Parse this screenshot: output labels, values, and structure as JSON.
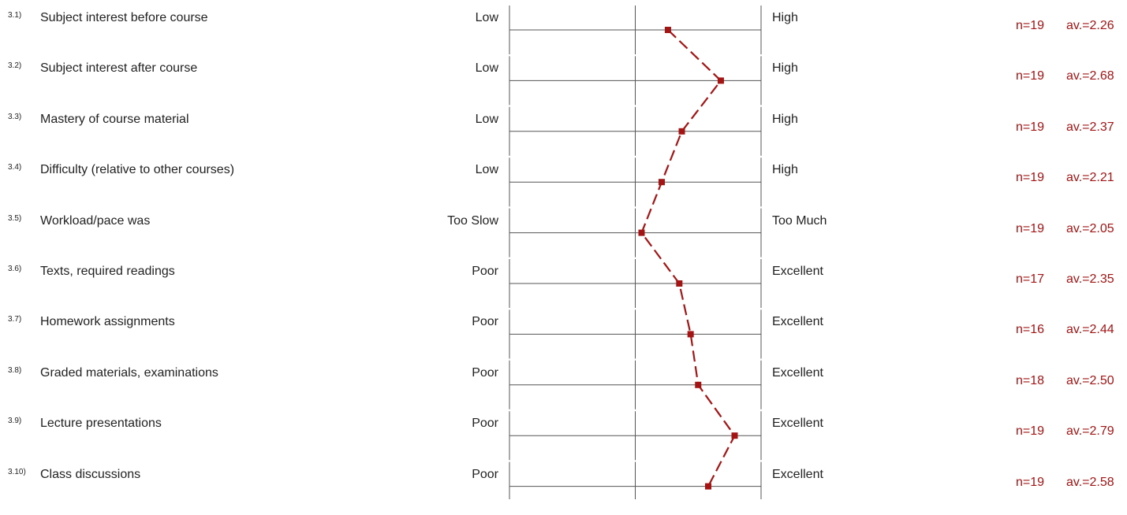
{
  "chart_data": {
    "type": "line",
    "scale_min": 1,
    "scale_max": 3,
    "color": "#a31515",
    "rows": [
      {
        "num": "3.1)",
        "label": "Subject interest before course",
        "low": "Low",
        "high": "High",
        "n": "n=19",
        "av": "av.=2.26",
        "value": 2.26
      },
      {
        "num": "3.2)",
        "label": "Subject interest after course",
        "low": "Low",
        "high": "High",
        "n": "n=19",
        "av": "av.=2.68",
        "value": 2.68
      },
      {
        "num": "3.3)",
        "label": "Mastery of course material",
        "low": "Low",
        "high": "High",
        "n": "n=19",
        "av": "av.=2.37",
        "value": 2.37
      },
      {
        "num": "3.4)",
        "label": "Difficulty (relative to other courses)",
        "low": "Low",
        "high": "High",
        "n": "n=19",
        "av": "av.=2.21",
        "value": 2.21
      },
      {
        "num": "3.5)",
        "label": "Workload/pace was",
        "low": "Too Slow",
        "high": "Too Much",
        "n": "n=19",
        "av": "av.=2.05",
        "value": 2.05
      },
      {
        "num": "3.6)",
        "label": "Texts, required readings",
        "low": "Poor",
        "high": "Excellent",
        "n": "n=17",
        "av": "av.=2.35",
        "value": 2.35
      },
      {
        "num": "3.7)",
        "label": "Homework assignments",
        "low": "Poor",
        "high": "Excellent",
        "n": "n=16",
        "av": "av.=2.44",
        "value": 2.44
      },
      {
        "num": "3.8)",
        "label": "Graded materials, examinations",
        "low": "Poor",
        "high": "Excellent",
        "n": "n=18",
        "av": "av.=2.50",
        "value": 2.5
      },
      {
        "num": "3.9)",
        "label": "Lecture presentations",
        "low": "Poor",
        "high": "Excellent",
        "n": "n=19",
        "av": "av.=2.79",
        "value": 2.79
      },
      {
        "num": "3.10)",
        "label": "Class discussions",
        "low": "Poor",
        "high": "Excellent",
        "n": "n=19",
        "av": "av.=2.58",
        "value": 2.58
      }
    ]
  }
}
